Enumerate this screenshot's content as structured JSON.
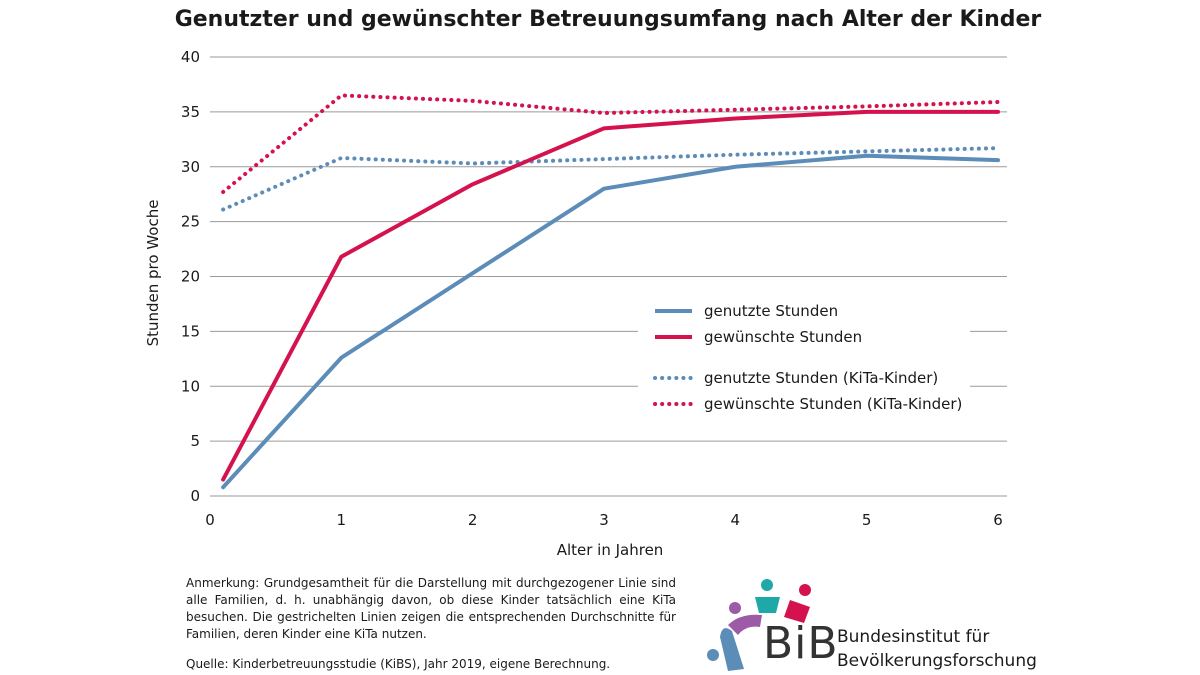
{
  "chart_data": {
    "type": "line",
    "title": "Genutzter und gewünschter Betreuungsumfang nach Alter der Kinder",
    "xlabel": "Alter in Jahren",
    "ylabel": "Stunden pro Woche",
    "xlim": [
      0,
      6
    ],
    "ylim": [
      0,
      40
    ],
    "x_ticks": [
      "0",
      "1",
      "2",
      "3",
      "4",
      "5",
      "6"
    ],
    "y_ticks": [
      "0",
      "5",
      "10",
      "15",
      "20",
      "25",
      "30",
      "35",
      "40"
    ],
    "grid": "horizontal",
    "legend_position": "center-right",
    "series": [
      {
        "name": "genutzte Stunden",
        "style": "solid",
        "color": "#5b8db8",
        "x": [
          0.1,
          1,
          2,
          3,
          4,
          5,
          6
        ],
        "values": [
          0.8,
          12.6,
          20.3,
          28.0,
          30.0,
          31.0,
          30.6
        ]
      },
      {
        "name": "gewünschte Stunden",
        "style": "solid",
        "color": "#d4124e",
        "x": [
          0.1,
          1,
          2,
          3,
          4,
          5,
          6
        ],
        "values": [
          1.5,
          21.8,
          28.4,
          33.5,
          34.4,
          35.0,
          35.0
        ]
      },
      {
        "name": "genutzte Stunden (KiTa-Kinder)",
        "style": "dotted",
        "color": "#5b8db8",
        "x": [
          0.1,
          1,
          2,
          3,
          4,
          5,
          6
        ],
        "values": [
          26.1,
          30.8,
          30.3,
          30.7,
          31.1,
          31.4,
          31.7
        ]
      },
      {
        "name": "gewünschte Stunden (KiTa-Kinder)",
        "style": "dotted",
        "color": "#d4124e",
        "x": [
          0.1,
          1,
          2,
          3,
          4,
          5,
          6
        ],
        "values": [
          27.7,
          36.5,
          36.0,
          34.9,
          35.2,
          35.5,
          35.9
        ]
      }
    ]
  },
  "note": "Anmerkung: Grundgesamtheit für die Darstellung mit durchgezogener Linie sind alle Familien, d. h. unabhängig davon, ob diese Kinder tatsächlich eine KiTa besuchen. Die gestrichelten Linien zeigen die entsprechenden Durchschnitte für Familien, deren Kinder eine KiTa nutzen.",
  "source": "Quelle: Kinderbetreuungsstudie (KiBS), Jahr 2019, eigene Berechnung.",
  "logo": {
    "abbr": "BiB",
    "line1": "Bundesinstitut für",
    "line2": "Bevölkerungsforschung"
  },
  "colors": {
    "blue": "#5b8db8",
    "red": "#d4124e",
    "grid": "#9a9a9a",
    "teal": "#1fa8a8",
    "purple": "#9b5ba7"
  }
}
